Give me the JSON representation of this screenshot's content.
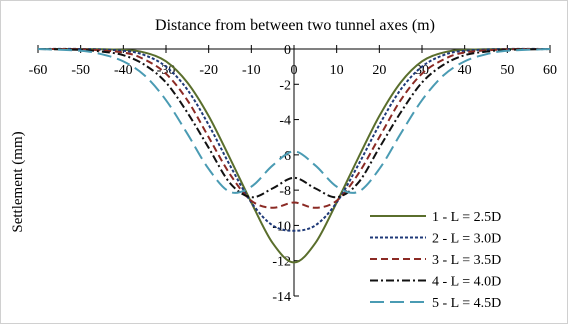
{
  "chart_data": {
    "type": "line",
    "title": "Distance from between two tunnel axes (m)",
    "xlabel": "",
    "ylabel": "Settlement (mm)",
    "xlim": [
      -60,
      60
    ],
    "ylim": [
      -14,
      0
    ],
    "x_ticks": [
      -60,
      -50,
      -40,
      -30,
      -20,
      -10,
      0,
      10,
      20,
      30,
      40,
      50,
      60
    ],
    "y_ticks": [
      0,
      -2,
      -4,
      -6,
      -8,
      -10,
      -12,
      -14
    ],
    "x_tick_labels": [
      "-60",
      "-50",
      "-40",
      "-30",
      "-20",
      "-10",
      "0",
      "10",
      "20",
      "30",
      "40",
      "50",
      "60"
    ],
    "y_tick_labels": [
      "0",
      "-2",
      "-4",
      "-6",
      "-8",
      "-10",
      "-12",
      "-14"
    ],
    "x_axis_position": "top",
    "y_axis_position": "center",
    "grid": false,
    "legend_position": "bottom-right",
    "series": [
      {
        "name": "1 - L = 2.5D",
        "color": "#5a6e2c",
        "dash": "solid",
        "x": [
          -60,
          -50,
          -40,
          -35,
          -30,
          -25,
          -20,
          -15,
          -10,
          -5,
          0,
          5,
          10,
          15,
          20,
          25,
          30,
          35,
          40,
          50,
          60
        ],
        "y": [
          0,
          0,
          -0.05,
          -0.2,
          -0.7,
          -1.9,
          -3.8,
          -6.2,
          -8.7,
          -11.0,
          -12.1,
          -11.0,
          -8.7,
          -6.2,
          -3.8,
          -1.9,
          -0.7,
          -0.2,
          -0.05,
          0,
          0
        ]
      },
      {
        "name": "2 - L = 3.0D",
        "color": "#1f3a78",
        "dash": "short-dash",
        "x": [
          -60,
          -50,
          -40,
          -35,
          -30,
          -25,
          -20,
          -15,
          -10,
          -5,
          0,
          5,
          10,
          15,
          20,
          25,
          30,
          35,
          40,
          50,
          60
        ],
        "y": [
          0,
          0,
          -0.1,
          -0.35,
          -1.0,
          -2.3,
          -4.3,
          -6.6,
          -8.7,
          -10.0,
          -10.3,
          -10.0,
          -8.7,
          -6.6,
          -4.3,
          -2.3,
          -1.0,
          -0.35,
          -0.1,
          0,
          0
        ]
      },
      {
        "name": "3 - L = 3.5D",
        "color": "#8b2a24",
        "dash": "dash",
        "x": [
          -60,
          -50,
          -40,
          -35,
          -30,
          -25,
          -20,
          -15,
          -10,
          -5,
          0,
          5,
          10,
          15,
          20,
          25,
          30,
          35,
          40,
          50,
          60
        ],
        "y": [
          0,
          -0.02,
          -0.2,
          -0.6,
          -1.4,
          -2.9,
          -5.0,
          -7.1,
          -8.6,
          -9.0,
          -8.7,
          -9.0,
          -8.6,
          -7.1,
          -5.0,
          -2.9,
          -1.4,
          -0.6,
          -0.2,
          -0.02,
          0
        ]
      },
      {
        "name": "4 - L = 4.0D",
        "color": "#111111",
        "dash": "dash-dot",
        "x": [
          -60,
          -50,
          -45,
          -40,
          -35,
          -30,
          -25,
          -20,
          -15,
          -10,
          -5,
          0,
          5,
          10,
          15,
          20,
          25,
          30,
          35,
          40,
          45,
          50,
          60
        ],
        "y": [
          0,
          -0.05,
          -0.15,
          -0.35,
          -0.9,
          -1.9,
          -3.6,
          -5.6,
          -7.6,
          -8.4,
          -7.9,
          -7.3,
          -7.9,
          -8.4,
          -7.6,
          -5.6,
          -3.6,
          -1.9,
          -0.9,
          -0.35,
          -0.15,
          -0.05,
          0
        ]
      },
      {
        "name": "5 - L = 4.5D",
        "color": "#4a9bb3",
        "dash": "long-dash",
        "x": [
          -60,
          -50,
          -45,
          -40,
          -35,
          -30,
          -25,
          -20,
          -15,
          -10,
          -5,
          0,
          5,
          10,
          15,
          20,
          25,
          30,
          35,
          40,
          45,
          50,
          60
        ],
        "y": [
          0,
          -0.1,
          -0.3,
          -0.7,
          -1.5,
          -2.9,
          -4.8,
          -6.8,
          -8.1,
          -7.8,
          -6.6,
          -5.8,
          -6.6,
          -7.8,
          -8.1,
          -6.8,
          -4.8,
          -2.9,
          -1.5,
          -0.7,
          -0.3,
          -0.1,
          0
        ]
      }
    ]
  }
}
